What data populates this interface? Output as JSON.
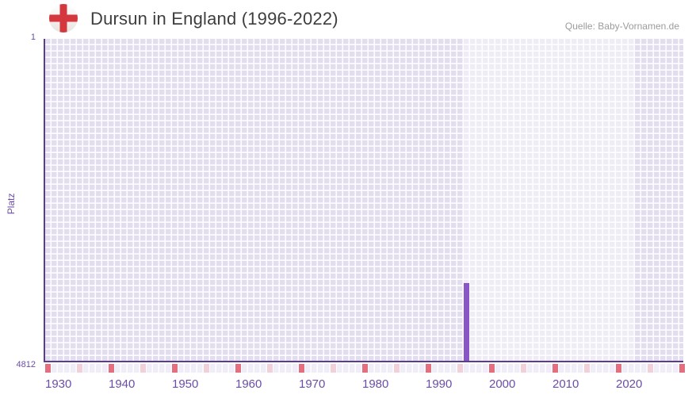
{
  "header": {
    "title": "Dursun in England (1996-2022)",
    "source": "Quelle: Baby-Vornamen.de"
  },
  "chart_data": {
    "type": "bar",
    "title": "Dursun in England (1996-2022)",
    "ylabel": "Platz",
    "xlabel": "",
    "y_axis": {
      "min": 1,
      "max": 4812,
      "inverted": true,
      "tick_labels": [
        "1",
        "4812"
      ]
    },
    "x_axis": {
      "start_year": 1930,
      "end_year": 2030,
      "tick_years": [
        1930,
        1940,
        1950,
        1960,
        1970,
        1980,
        1990,
        2000,
        2010,
        2020
      ],
      "decade_step": 10,
      "half_decade_step": 5
    },
    "highlight_period": {
      "from": 1996,
      "to": 2022
    },
    "series": [
      {
        "name": "Dursun",
        "points": [
          {
            "year": 1996,
            "platz": 3650
          }
        ]
      }
    ],
    "legend": null,
    "grid": true
  },
  "colors": {
    "bar": "#8a55c6",
    "axis_line": "#5b3d90",
    "tick_text": "#6b4da6",
    "grid_cell": "#e3deef",
    "grid_cell_highlight": "#efecf8",
    "strip_cell": "#f0ecf8",
    "decade_marker": "#e26e7e",
    "half_decade_marker": "#f2d0da",
    "title_text": "#3e3e3e",
    "source_text": "#9b9b9b",
    "flag_red": "#d4373e",
    "flag_bg": "#f7f5f2",
    "flag_rim": "#ddd9d4"
  }
}
